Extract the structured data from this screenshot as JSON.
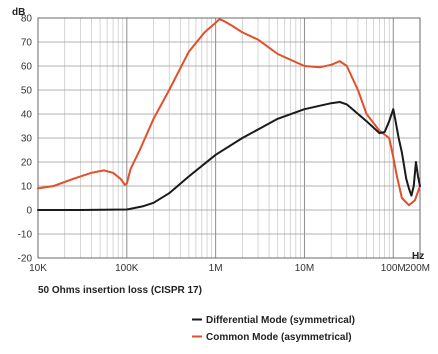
{
  "chart_data": {
    "type": "line",
    "title": "",
    "xlabel": "Hz",
    "ylabel": "dB",
    "x_scale": "log",
    "xlim": [
      10000,
      200000000
    ],
    "ylim": [
      -20,
      80
    ],
    "x_tick_values": [
      10000,
      100000,
      1000000,
      10000000,
      100000000,
      200000000
    ],
    "x_tick_labels": [
      "10K",
      "100K",
      "1M",
      "10M",
      "100M",
      "200M"
    ],
    "y_ticks": [
      -20,
      -10,
      0,
      10,
      20,
      30,
      40,
      50,
      60,
      70,
      80
    ],
    "grid": true,
    "caption": "50 Ohms insertion loss (CISPR 17)",
    "legend_position": "bottom-right",
    "series": [
      {
        "name": "Differential Mode (symmetrical)",
        "color": "#1a1a1a",
        "points": [
          [
            10000,
            0
          ],
          [
            30000,
            0
          ],
          [
            100000,
            0.2
          ],
          [
            150000,
            1.5
          ],
          [
            200000,
            3
          ],
          [
            300000,
            7
          ],
          [
            500000,
            14
          ],
          [
            1000000,
            23
          ],
          [
            2000000,
            30
          ],
          [
            5000000,
            38
          ],
          [
            10000000,
            42
          ],
          [
            20000000,
            44.5
          ],
          [
            25000000,
            45
          ],
          [
            30000000,
            44
          ],
          [
            50000000,
            37
          ],
          [
            70000000,
            32
          ],
          [
            80000000,
            32.5
          ],
          [
            90000000,
            37
          ],
          [
            100000000,
            42
          ],
          [
            105000000,
            38
          ],
          [
            115000000,
            30
          ],
          [
            125000000,
            24
          ],
          [
            140000000,
            13
          ],
          [
            150000000,
            9
          ],
          [
            160000000,
            6
          ],
          [
            170000000,
            10
          ],
          [
            180000000,
            20
          ],
          [
            190000000,
            14
          ],
          [
            200000000,
            10
          ]
        ]
      },
      {
        "name": "Common Mode (asymmetrical)",
        "color": "#e0502a",
        "points": [
          [
            10000,
            9
          ],
          [
            15000,
            10
          ],
          [
            25000,
            13
          ],
          [
            40000,
            15.5
          ],
          [
            55000,
            16.5
          ],
          [
            70000,
            15.5
          ],
          [
            85000,
            13
          ],
          [
            95000,
            10.5
          ],
          [
            100000,
            11
          ],
          [
            110000,
            17
          ],
          [
            140000,
            25
          ],
          [
            200000,
            38
          ],
          [
            300000,
            50
          ],
          [
            500000,
            66
          ],
          [
            750000,
            74
          ],
          [
            1000000,
            78
          ],
          [
            1100000,
            79.5
          ],
          [
            1200000,
            79
          ],
          [
            1500000,
            77
          ],
          [
            2000000,
            74
          ],
          [
            3000000,
            71
          ],
          [
            5000000,
            65
          ],
          [
            10000000,
            60
          ],
          [
            15000000,
            59.5
          ],
          [
            20000000,
            60.5
          ],
          [
            25000000,
            62
          ],
          [
            30000000,
            60
          ],
          [
            40000000,
            50
          ],
          [
            50000000,
            40
          ],
          [
            70000000,
            33
          ],
          [
            90000000,
            30
          ],
          [
            100000000,
            22
          ],
          [
            110000000,
            14
          ],
          [
            125000000,
            5
          ],
          [
            150000000,
            2
          ],
          [
            175000000,
            4
          ],
          [
            200000000,
            10
          ]
        ]
      }
    ]
  }
}
